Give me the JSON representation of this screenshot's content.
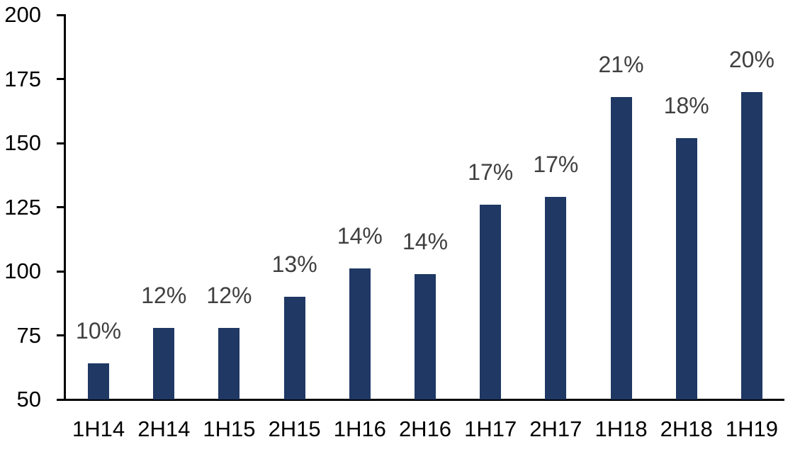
{
  "chart_data": {
    "type": "bar",
    "title": "",
    "xlabel": "",
    "ylabel": "",
    "categories": [
      "1H14",
      "2H14",
      "1H15",
      "2H15",
      "1H16",
      "2H16",
      "1H17",
      "2H17",
      "1H18",
      "2H18",
      "1H19"
    ],
    "values": [
      64,
      78,
      78,
      90,
      101,
      99,
      126,
      129,
      168,
      152,
      170
    ],
    "data_labels": [
      "10%",
      "12%",
      "12%",
      "13%",
      "14%",
      "14%",
      "17%",
      "17%",
      "21%",
      "18%",
      "20%"
    ],
    "ylim": [
      50,
      200
    ],
    "ytick_values": [
      50,
      75,
      100,
      125,
      150,
      175,
      200
    ],
    "ytick_labels": [
      "50",
      "75",
      "100",
      "125",
      "150",
      "175",
      "200"
    ],
    "grid": false,
    "legend": "none",
    "colors": {
      "bar": "#1F3864",
      "data_label": "#404040",
      "axis": "#000000",
      "background": "#FFFFFF"
    }
  }
}
